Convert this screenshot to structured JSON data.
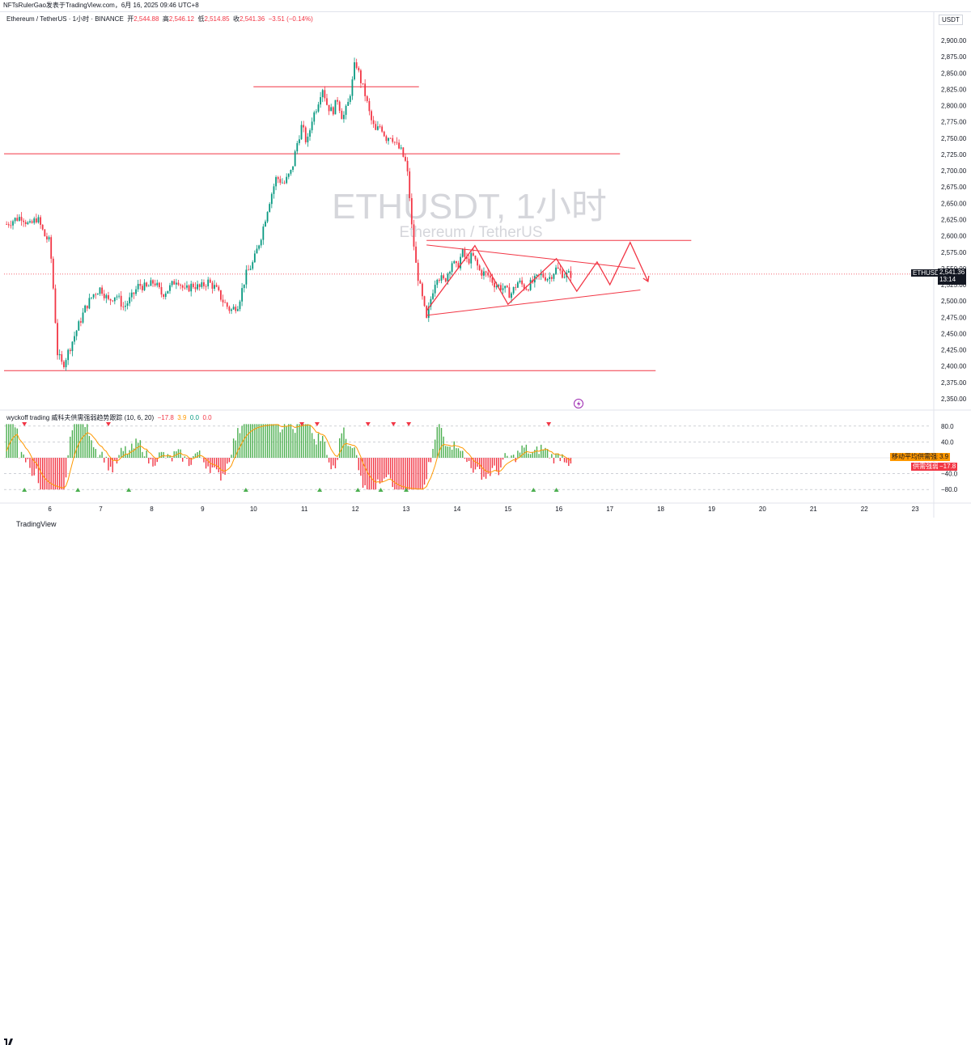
{
  "header": {
    "attribution": "NFTsRulerGao发表于TradingView.com，6月 16, 2025 09:46 UTC+8"
  },
  "legend": {
    "symbol": "Ethereum / TetherUS · 1小时 · BINANCE",
    "open_label": "开",
    "open": "2,544.88",
    "high_label": "高",
    "high": "2,546.12",
    "low_label": "低",
    "low": "2,514.85",
    "close_label": "收",
    "close": "2,541.36",
    "change": "−3.51 (−0.14%)"
  },
  "currency_badge": "USDT",
  "watermark": {
    "title": "ETHUSDT, 1小时",
    "subtitle": "Ethereum / TetherUS"
  },
  "price_flag": {
    "symbol": "ETHUSDT",
    "price": "2,541.36",
    "countdown": "13:14"
  },
  "indicator": {
    "name": "wyckoff trading 威科夫供需强弱趋势跟踪 (10, 6, 20)",
    "v1": "−17.8",
    "v2": "3.9",
    "v3": "0.0",
    "v4": "0.0",
    "flag_ma_label": "移动平均供需强弱",
    "flag_ma_value": "3.9",
    "flag_sd_label": "供需强弱",
    "flag_sd_value": "−17.8",
    "ticks": [
      "80.0",
      "40.0",
      "−40.0",
      "−80.0"
    ]
  },
  "footer": {
    "brand": "TradingView"
  },
  "colors": {
    "up": "#089981",
    "down": "#f23645",
    "line": "#f23645",
    "hist_up": "#4caf50",
    "hist_down": "#f23645",
    "signal": "#ff9800"
  },
  "chart_data": {
    "type": "candlestick",
    "title": "ETHUSDT, 1小时",
    "subtitle": "Ethereum / TetherUS",
    "x_tick_labels": [
      "6",
      "7",
      "8",
      "9",
      "10",
      "11",
      "12",
      "13",
      "14",
      "15",
      "16",
      "17",
      "18",
      "19",
      "20",
      "21",
      "22",
      "23"
    ],
    "y_tick_labels": [
      "2,900.00",
      "2,875.00",
      "2,850.00",
      "2,825.00",
      "2,800.00",
      "2,775.00",
      "2,750.00",
      "2,725.00",
      "2,700.00",
      "2,675.00",
      "2,650.00",
      "2,625.00",
      "2,600.00",
      "2,575.00",
      "2,550.00",
      "2,525.00",
      "2,500.00",
      "2,475.00",
      "2,450.00",
      "2,425.00",
      "2,400.00",
      "2,375.00",
      "2,350.00"
    ],
    "ylim": [
      2335,
      2915
    ],
    "xlim_days": [
      5.1,
      23.3
    ],
    "last_price": 2541.36,
    "close_path": [
      [
        5.15,
        2618
      ],
      [
        5.3,
        2625
      ],
      [
        5.45,
        2630
      ],
      [
        5.6,
        2615
      ],
      [
        5.75,
        2628
      ],
      [
        5.9,
        2600
      ],
      [
        6.0,
        2590
      ],
      [
        6.05,
        2540
      ],
      [
        6.15,
        2420
      ],
      [
        6.25,
        2400
      ],
      [
        6.4,
        2430
      ],
      [
        6.55,
        2460
      ],
      [
        6.7,
        2490
      ],
      [
        6.85,
        2510
      ],
      [
        7.0,
        2520
      ],
      [
        7.15,
        2500
      ],
      [
        7.3,
        2510
      ],
      [
        7.45,
        2490
      ],
      [
        7.6,
        2505
      ],
      [
        7.75,
        2525
      ],
      [
        7.9,
        2520
      ],
      [
        8.05,
        2530
      ],
      [
        8.2,
        2510
      ],
      [
        8.35,
        2520
      ],
      [
        8.5,
        2535
      ],
      [
        8.65,
        2515
      ],
      [
        8.8,
        2525
      ],
      [
        8.95,
        2520
      ],
      [
        9.1,
        2530
      ],
      [
        9.25,
        2520
      ],
      [
        9.4,
        2500
      ],
      [
        9.55,
        2485
      ],
      [
        9.7,
        2495
      ],
      [
        9.85,
        2540
      ],
      [
        10.0,
        2560
      ],
      [
        10.15,
        2600
      ],
      [
        10.3,
        2650
      ],
      [
        10.45,
        2690
      ],
      [
        10.6,
        2680
      ],
      [
        10.75,
        2700
      ],
      [
        10.85,
        2740
      ],
      [
        10.95,
        2770
      ],
      [
        11.05,
        2740
      ],
      [
        11.15,
        2780
      ],
      [
        11.25,
        2800
      ],
      [
        11.35,
        2830
      ],
      [
        11.45,
        2800
      ],
      [
        11.55,
        2790
      ],
      [
        11.65,
        2810
      ],
      [
        11.75,
        2780
      ],
      [
        11.85,
        2800
      ],
      [
        11.95,
        2840
      ],
      [
        12.0,
        2870
      ],
      [
        12.1,
        2840
      ],
      [
        12.2,
        2815
      ],
      [
        12.3,
        2780
      ],
      [
        12.4,
        2760
      ],
      [
        12.5,
        2770
      ],
      [
        12.6,
        2750
      ],
      [
        12.7,
        2755
      ],
      [
        12.8,
        2740
      ],
      [
        12.9,
        2730
      ],
      [
        13.0,
        2710
      ],
      [
        13.05,
        2680
      ],
      [
        13.1,
        2620
      ],
      [
        13.2,
        2550
      ],
      [
        13.3,
        2510
      ],
      [
        13.4,
        2470
      ],
      [
        13.5,
        2510
      ],
      [
        13.6,
        2540
      ],
      [
        13.75,
        2530
      ],
      [
        13.9,
        2560
      ],
      [
        14.0,
        2550
      ],
      [
        14.1,
        2575
      ],
      [
        14.2,
        2560
      ],
      [
        14.3,
        2570
      ],
      [
        14.45,
        2545
      ],
      [
        14.6,
        2540
      ],
      [
        14.75,
        2525
      ],
      [
        14.9,
        2520
      ],
      [
        15.05,
        2510
      ],
      [
        15.2,
        2530
      ],
      [
        15.35,
        2520
      ],
      [
        15.5,
        2530
      ],
      [
        15.65,
        2540
      ],
      [
        15.8,
        2535
      ],
      [
        15.95,
        2550
      ],
      [
        16.1,
        2540
      ],
      [
        16.25,
        2541
      ]
    ],
    "levels": [
      {
        "price": 2829,
        "from_day": 10.0,
        "to_day": 13.25
      },
      {
        "price": 2726,
        "from_day": 5.1,
        "to_day": 17.2
      },
      {
        "price": 2593,
        "from_day": 13.4,
        "to_day": 18.6
      },
      {
        "price": 2393,
        "from_day": 5.1,
        "to_day": 17.9
      }
    ],
    "trendlines": [
      {
        "from": [
          13.4,
          2586
        ],
        "to": [
          17.5,
          2550
        ]
      },
      {
        "from": [
          13.4,
          2478
        ],
        "to": [
          17.6,
          2517
        ]
      }
    ],
    "zigzag_path": [
      [
        13.4,
        2485
      ],
      [
        14.35,
        2585
      ],
      [
        15.0,
        2495
      ],
      [
        15.95,
        2565
      ],
      [
        16.35,
        2515
      ],
      [
        16.75,
        2560
      ],
      [
        17.0,
        2525
      ],
      [
        17.4,
        2590
      ],
      [
        17.75,
        2530
      ]
    ],
    "indicator_series": {
      "name": "wyckoff trading 威科夫供需强弱趋势跟踪",
      "params": "(10, 6, 20)",
      "ylim": [
        -100,
        100
      ],
      "ticks": [
        80,
        40,
        -40,
        -80
      ]
    }
  }
}
